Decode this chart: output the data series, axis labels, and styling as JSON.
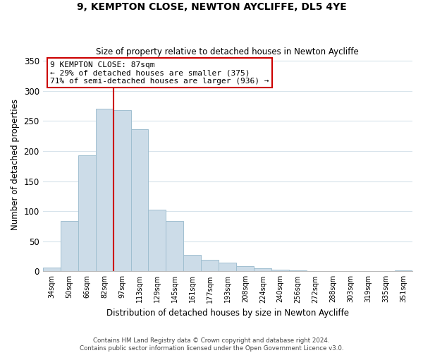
{
  "title": "9, KEMPTON CLOSE, NEWTON AYCLIFFE, DL5 4YE",
  "subtitle": "Size of property relative to detached houses in Newton Aycliffe",
  "xlabel": "Distribution of detached houses by size in Newton Aycliffe",
  "ylabel": "Number of detached properties",
  "bar_labels": [
    "34sqm",
    "50sqm",
    "66sqm",
    "82sqm",
    "97sqm",
    "113sqm",
    "129sqm",
    "145sqm",
    "161sqm",
    "177sqm",
    "193sqm",
    "208sqm",
    "224sqm",
    "240sqm",
    "256sqm",
    "272sqm",
    "288sqm",
    "303sqm",
    "319sqm",
    "335sqm",
    "351sqm"
  ],
  "bar_values": [
    6,
    84,
    193,
    271,
    268,
    236,
    103,
    84,
    27,
    19,
    15,
    8,
    5,
    3,
    1,
    0,
    0,
    0,
    0,
    0,
    1
  ],
  "bar_color": "#ccdce8",
  "bar_edge_color": "#a0bfd0",
  "vline_color": "#cc0000",
  "ylim": [
    0,
    355
  ],
  "yticks": [
    0,
    50,
    100,
    150,
    200,
    250,
    300,
    350
  ],
  "annotation_line1": "9 KEMPTON CLOSE: 87sqm",
  "annotation_line2": "← 29% of detached houses are smaller (375)",
  "annotation_line3": "71% of semi-detached houses are larger (936) →",
  "annotation_box_color": "#ffffff",
  "annotation_box_edge": "#cc0000",
  "footer_line1": "Contains HM Land Registry data © Crown copyright and database right 2024.",
  "footer_line2": "Contains public sector information licensed under the Open Government Licence v3.0.",
  "grid_color": "#d8e4ec"
}
